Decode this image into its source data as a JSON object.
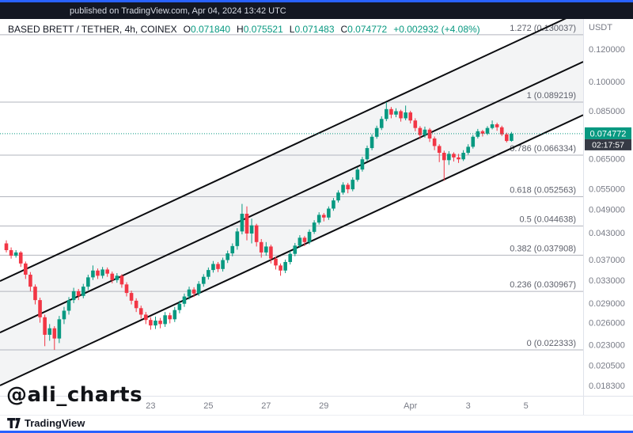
{
  "topbar": {
    "text": "published on TradingView.com, Apr 04, 2024 13:42 UTC"
  },
  "header": {
    "symbol": "BASED BRETT / TETHER, 4h, COINEX",
    "ohlc": [
      {
        "label": "O",
        "value": "0.071840"
      },
      {
        "label": "H",
        "value": "0.075521"
      },
      {
        "label": "L",
        "value": "0.071483"
      },
      {
        "label": "C",
        "value": "0.074772"
      }
    ],
    "change": "+0.002932 (+4.08%)"
  },
  "watermark": {
    "text": "@ali_charts"
  },
  "footer": {
    "brand": "TradingView"
  },
  "price_scale": {
    "currency": "USDT",
    "ticks": [
      0.12,
      0.1,
      0.085,
      0.065,
      0.055,
      0.049,
      0.043,
      0.037,
      0.033,
      0.029,
      0.026,
      0.023,
      0.0205,
      0.0183
    ],
    "tick_labels": [
      "0.120000",
      "0.100000",
      "0.085000",
      "0.065000",
      "0.055000",
      "0.049000",
      "0.043000",
      "0.037000",
      "0.033000",
      "0.029000",
      "0.026000",
      "0.023000",
      "0.020500",
      "0.018300"
    ],
    "last_price": {
      "value": 0.074772,
      "label": "0.074772",
      "countdown": "02:17:57"
    }
  },
  "time_scale": {
    "ticks": [
      {
        "label": "23",
        "index": 30
      },
      {
        "label": "25",
        "index": 42
      },
      {
        "label": "27",
        "index": 54
      },
      {
        "label": "29",
        "index": 66
      },
      {
        "label": "Apr",
        "index": 84
      },
      {
        "label": "3",
        "index": 96
      },
      {
        "label": "5",
        "index": 108
      }
    ]
  },
  "colors": {
    "up": "#089981",
    "down": "#f23645",
    "accent": "#2962ff",
    "channel": "#0b0c0f",
    "fib": "#b2b5be",
    "fib_text": "#5d606b",
    "axis_text": "#787b86",
    "badge_bg": "#089981",
    "countdown_bg": "#363a45",
    "band": "rgba(135,145,160,0.10)",
    "separator": "#e0e3eb"
  },
  "chart_data": {
    "type": "candlestick",
    "title": "BASED BRETT / TETHER",
    "interval": "4h",
    "exchange": "COINEX",
    "scale": "log",
    "legend_position": "none",
    "grid": "off",
    "ylim": [
      0.0175,
      0.135
    ],
    "candles_ohlc": [
      [
        0.0405,
        0.0412,
        0.0385,
        0.039
      ],
      [
        0.039,
        0.0396,
        0.0372,
        0.0378
      ],
      [
        0.0378,
        0.039,
        0.0374,
        0.0385
      ],
      [
        0.0385,
        0.0388,
        0.0355,
        0.0362
      ],
      [
        0.0362,
        0.0366,
        0.0332,
        0.034
      ],
      [
        0.034,
        0.0345,
        0.031,
        0.0318
      ],
      [
        0.0318,
        0.0322,
        0.0288,
        0.0295
      ],
      [
        0.0295,
        0.0299,
        0.026,
        0.0268
      ],
      [
        0.0268,
        0.0272,
        0.0228,
        0.0243
      ],
      [
        0.0243,
        0.0258,
        0.0235,
        0.0252
      ],
      [
        0.0252,
        0.0255,
        0.022333,
        0.0238
      ],
      [
        0.0238,
        0.027,
        0.0232,
        0.0265
      ],
      [
        0.0265,
        0.0284,
        0.0258,
        0.0278
      ],
      [
        0.0278,
        0.03,
        0.0272,
        0.0295
      ],
      [
        0.0295,
        0.0316,
        0.029,
        0.031
      ],
      [
        0.031,
        0.0314,
        0.0295,
        0.0302
      ],
      [
        0.0302,
        0.0323,
        0.0298,
        0.0318
      ],
      [
        0.0318,
        0.034,
        0.0312,
        0.0335
      ],
      [
        0.0335,
        0.0358,
        0.033,
        0.0348
      ],
      [
        0.0348,
        0.0352,
        0.0332,
        0.0338
      ],
      [
        0.0338,
        0.0355,
        0.0333,
        0.035
      ],
      [
        0.035,
        0.0354,
        0.0336,
        0.0342
      ],
      [
        0.0342,
        0.0346,
        0.0324,
        0.033
      ],
      [
        0.033,
        0.0343,
        0.0325,
        0.0338
      ],
      [
        0.0338,
        0.0341,
        0.0316,
        0.0322
      ],
      [
        0.0322,
        0.0326,
        0.0301,
        0.0307
      ],
      [
        0.0307,
        0.0311,
        0.0288,
        0.0294
      ],
      [
        0.0294,
        0.0298,
        0.0276,
        0.0282
      ],
      [
        0.0282,
        0.0286,
        0.0266,
        0.0272
      ],
      [
        0.0272,
        0.0276,
        0.0258,
        0.0264
      ],
      [
        0.0264,
        0.0268,
        0.025,
        0.0256
      ],
      [
        0.0256,
        0.0269,
        0.0251,
        0.0263
      ],
      [
        0.0263,
        0.0267,
        0.0252,
        0.0258
      ],
      [
        0.0258,
        0.0276,
        0.0254,
        0.0271
      ],
      [
        0.0271,
        0.0275,
        0.0259,
        0.0265
      ],
      [
        0.0265,
        0.0284,
        0.0261,
        0.0279
      ],
      [
        0.0279,
        0.0294,
        0.0274,
        0.0289
      ],
      [
        0.0289,
        0.0306,
        0.0284,
        0.0301
      ],
      [
        0.0301,
        0.0318,
        0.0296,
        0.0313
      ],
      [
        0.0313,
        0.0317,
        0.03,
        0.0306
      ],
      [
        0.0306,
        0.0328,
        0.0302,
        0.0323
      ],
      [
        0.0323,
        0.0341,
        0.0318,
        0.0336
      ],
      [
        0.0336,
        0.0354,
        0.0331,
        0.0349
      ],
      [
        0.0349,
        0.0367,
        0.0344,
        0.0361
      ],
      [
        0.0361,
        0.0365,
        0.0345,
        0.0351
      ],
      [
        0.0351,
        0.0374,
        0.0346,
        0.0369
      ],
      [
        0.0369,
        0.0389,
        0.0363,
        0.0383
      ],
      [
        0.0383,
        0.0405,
        0.0377,
        0.0399
      ],
      [
        0.0399,
        0.0441,
        0.0391,
        0.0433
      ],
      [
        0.0433,
        0.0505,
        0.0426,
        0.0478
      ],
      [
        0.0478,
        0.0498,
        0.0412,
        0.0428
      ],
      [
        0.0428,
        0.0465,
        0.0405,
        0.0448
      ],
      [
        0.0448,
        0.0452,
        0.0398,
        0.0408
      ],
      [
        0.0408,
        0.0415,
        0.0374,
        0.0385
      ],
      [
        0.0385,
        0.0408,
        0.0378,
        0.0398
      ],
      [
        0.0398,
        0.0402,
        0.0362,
        0.0372
      ],
      [
        0.0372,
        0.0376,
        0.035,
        0.0358
      ],
      [
        0.0358,
        0.0362,
        0.0338,
        0.0348
      ],
      [
        0.0348,
        0.037,
        0.0343,
        0.0365
      ],
      [
        0.0365,
        0.0388,
        0.036,
        0.0382
      ],
      [
        0.0382,
        0.0406,
        0.0377,
        0.04
      ],
      [
        0.04,
        0.0424,
        0.0395,
        0.0418
      ],
      [
        0.0418,
        0.0422,
        0.0399,
        0.0408
      ],
      [
        0.0408,
        0.0438,
        0.0403,
        0.0432
      ],
      [
        0.0432,
        0.0461,
        0.0427,
        0.0455
      ],
      [
        0.0455,
        0.0482,
        0.045,
        0.0475
      ],
      [
        0.0475,
        0.048,
        0.0458,
        0.0468
      ],
      [
        0.0468,
        0.0498,
        0.0462,
        0.0492
      ],
      [
        0.0492,
        0.0522,
        0.0486,
        0.0515
      ],
      [
        0.0515,
        0.0545,
        0.0509,
        0.0538
      ],
      [
        0.0538,
        0.057,
        0.0532,
        0.0562
      ],
      [
        0.0562,
        0.0568,
        0.0536,
        0.0548
      ],
      [
        0.0548,
        0.0586,
        0.0542,
        0.0578
      ],
      [
        0.0578,
        0.062,
        0.0572,
        0.0612
      ],
      [
        0.0612,
        0.0657,
        0.0605,
        0.0648
      ],
      [
        0.0648,
        0.07,
        0.0641,
        0.069
      ],
      [
        0.069,
        0.0745,
        0.0682,
        0.0735
      ],
      [
        0.0735,
        0.0782,
        0.0727,
        0.0772
      ],
      [
        0.0772,
        0.0824,
        0.0763,
        0.0812
      ],
      [
        0.0812,
        0.089219,
        0.0802,
        0.0858
      ],
      [
        0.0858,
        0.0868,
        0.0815,
        0.0832
      ],
      [
        0.0832,
        0.0862,
        0.082,
        0.0848
      ],
      [
        0.0848,
        0.0855,
        0.08,
        0.0815
      ],
      [
        0.0815,
        0.0875,
        0.0806,
        0.0842
      ],
      [
        0.0842,
        0.085,
        0.0792,
        0.0805
      ],
      [
        0.0805,
        0.0815,
        0.0758,
        0.0772
      ],
      [
        0.0772,
        0.078,
        0.0726,
        0.0742
      ],
      [
        0.0742,
        0.0778,
        0.0732,
        0.0765
      ],
      [
        0.0765,
        0.0772,
        0.0714,
        0.0728
      ],
      [
        0.0728,
        0.0736,
        0.0682,
        0.0698
      ],
      [
        0.0698,
        0.0705,
        0.0638,
        0.0672
      ],
      [
        0.0672,
        0.068,
        0.0575,
        0.0645
      ],
      [
        0.0645,
        0.0678,
        0.0628,
        0.0668
      ],
      [
        0.0668,
        0.0674,
        0.064,
        0.0655
      ],
      [
        0.0655,
        0.0668,
        0.0635,
        0.0648
      ],
      [
        0.0648,
        0.0682,
        0.0642,
        0.0672
      ],
      [
        0.0672,
        0.0705,
        0.0665,
        0.0695
      ],
      [
        0.0695,
        0.0742,
        0.0688,
        0.0735
      ],
      [
        0.0735,
        0.0768,
        0.0728,
        0.0758
      ],
      [
        0.0758,
        0.0764,
        0.0736,
        0.0748
      ],
      [
        0.0748,
        0.078,
        0.0742,
        0.0772
      ],
      [
        0.0772,
        0.0805,
        0.0766,
        0.0788
      ],
      [
        0.0788,
        0.0795,
        0.076,
        0.0775
      ],
      [
        0.0775,
        0.0782,
        0.0738,
        0.0745
      ],
      [
        0.0745,
        0.0752,
        0.0712,
        0.0718
      ],
      [
        0.07184,
        0.075521,
        0.071483,
        0.074772
      ]
    ],
    "fib_levels": [
      {
        "label": "1.272 (0.130037)",
        "price": 0.130037
      },
      {
        "label": "1 (0.089219)",
        "price": 0.089219
      },
      {
        "label": "0.786 (0.066334)",
        "price": 0.066334
      },
      {
        "label": "0.618 (0.052563)",
        "price": 0.052563
      },
      {
        "label": "0.5 (0.044638)",
        "price": 0.044638
      },
      {
        "label": "0.382 (0.037908)",
        "price": 0.037908
      },
      {
        "label": "0.236 (0.030967)",
        "price": 0.030967
      },
      {
        "label": "0 (0.022333)",
        "price": 0.022333
      }
    ],
    "channel_lines": [
      {
        "position": "upper",
        "price_left": 0.0328,
        "price_right": 0.149
      },
      {
        "position": "middle",
        "price_left": 0.0246,
        "price_right": 0.1118
      },
      {
        "position": "lower",
        "price_left": 0.0183,
        "price_right": 0.083
      }
    ]
  }
}
